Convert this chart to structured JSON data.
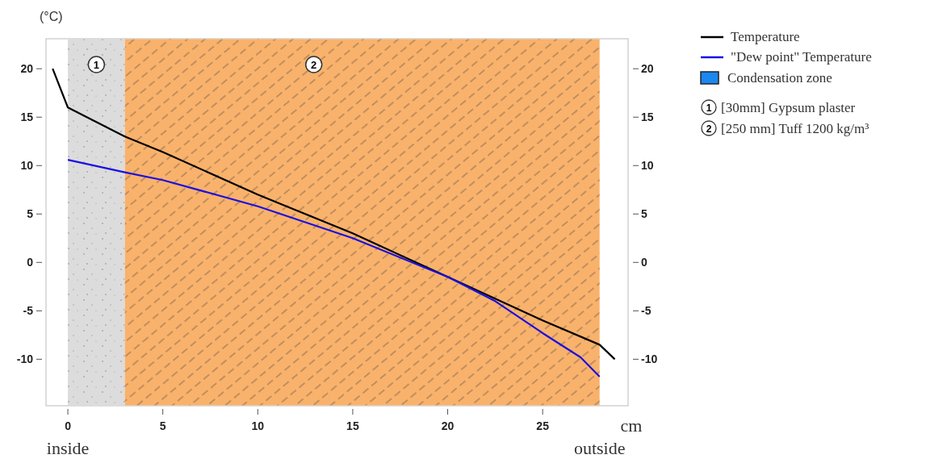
{
  "chart_data": {
    "type": "line",
    "ylabel": "(°C)",
    "xlabel": "cm",
    "xlim": [
      -1.15,
      29.5
    ],
    "xticks": [
      0,
      5,
      10,
      15,
      20,
      25
    ],
    "ylim": [
      -14.8,
      23.1
    ],
    "yticks": [
      -10,
      -5,
      0,
      5,
      10,
      15,
      20
    ],
    "y2lim": [
      -14.8,
      23.1
    ],
    "y2ticks": [
      -10,
      -5,
      0,
      5,
      10,
      15,
      20
    ],
    "series": [
      {
        "name": "Temperature",
        "color": "#000000",
        "x": [
          -0.8,
          0,
          3,
          5,
          10,
          15,
          20,
          25,
          28,
          28.8
        ],
        "values": [
          20,
          16,
          13,
          11.4,
          7.0,
          3.0,
          -1.5,
          -6.0,
          -8.5,
          -10
        ]
      },
      {
        "name": "\"Dew point\" Temperature",
        "color": "#1a10e0",
        "x": [
          0,
          3,
          5,
          10,
          15,
          20,
          22.5,
          25,
          27,
          28
        ],
        "values": [
          10.6,
          9.3,
          8.5,
          5.8,
          2.5,
          -1.5,
          -4.0,
          -7.3,
          -9.8,
          -11.8
        ]
      }
    ],
    "bands": [
      {
        "axis": "x",
        "from": 0,
        "to": 3,
        "label": "1",
        "color": "#dcdcdc"
      },
      {
        "axis": "x",
        "from": 3,
        "to": 28,
        "label": "2",
        "color": "#f9b26b"
      }
    ],
    "legend": "top right",
    "annotations": [
      "Condensation zone",
      "[30mm] Gypsum plaster",
      "[250 mm] Tuff 1200 kg/m³",
      "inside",
      "outside"
    ]
  }
}
